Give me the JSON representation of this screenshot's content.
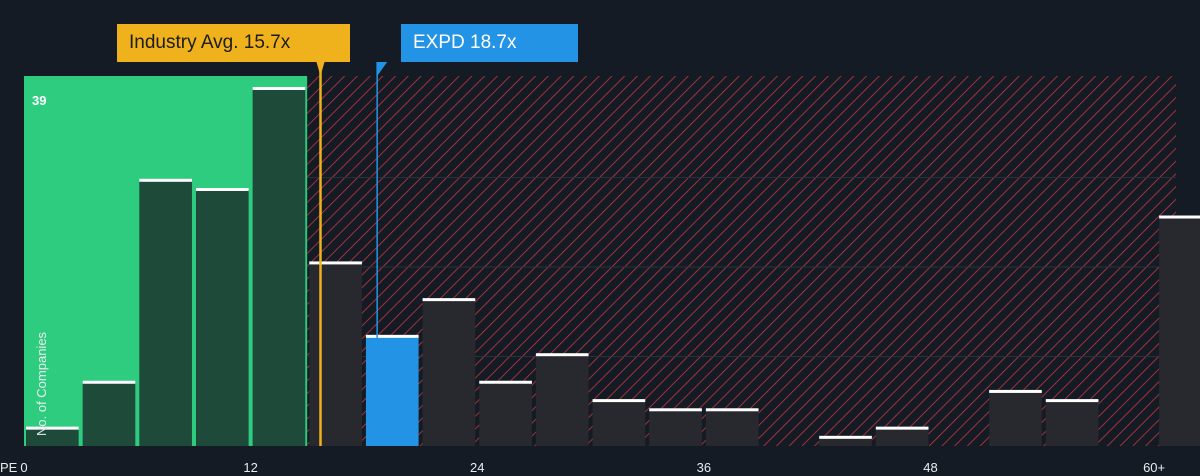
{
  "chart_data": {
    "type": "bar",
    "xlabel": "PE",
    "ylabel": "No. of Companies",
    "x_tick_labels": [
      "0",
      "12",
      "24",
      "36",
      "48",
      "60+"
    ],
    "x_tick_values": [
      0,
      12,
      24,
      36,
      48,
      60
    ],
    "xlim": [
      0,
      61
    ],
    "ylim": [
      0,
      39
    ],
    "y_max_label": "39",
    "bin_width": 3,
    "bins": [
      {
        "start": 0,
        "value": 2
      },
      {
        "start": 3,
        "value": 7
      },
      {
        "start": 6,
        "value": 29
      },
      {
        "start": 9,
        "value": 28
      },
      {
        "start": 12,
        "value": 39
      },
      {
        "start": 15,
        "value": 20
      },
      {
        "start": 18,
        "value": 12
      },
      {
        "start": 21,
        "value": 16
      },
      {
        "start": 24,
        "value": 7
      },
      {
        "start": 27,
        "value": 10
      },
      {
        "start": 30,
        "value": 5
      },
      {
        "start": 33,
        "value": 4
      },
      {
        "start": 36,
        "value": 4
      },
      {
        "start": 39,
        "value": 0
      },
      {
        "start": 42,
        "value": 1
      },
      {
        "start": 45,
        "value": 2
      },
      {
        "start": 48,
        "value": 0
      },
      {
        "start": 51,
        "value": 6
      },
      {
        "start": 54,
        "value": 5
      },
      {
        "start": 57,
        "value": 0
      },
      {
        "start": 60,
        "value": 25
      }
    ],
    "highlight_bin_start": 18,
    "industry_avg": {
      "label": "Industry Avg. 15.7x",
      "value": 15.7
    },
    "company": {
      "label": "EXPD 18.7x",
      "value": 18.7
    },
    "fair_zone_end": 15,
    "colors": {
      "background": "#151b24",
      "fair_zone": "#2ecc7f",
      "bar_in_fair": "#1e4a3a",
      "bar_default": "#28282f",
      "bar_highlight": "#2394e5",
      "bar_top": "#ffffff",
      "hatch_line": "#c0393f",
      "industry_line": "#f0b21c",
      "company_line": "#2394e5",
      "grid": "#2c333e"
    },
    "grid": true
  }
}
